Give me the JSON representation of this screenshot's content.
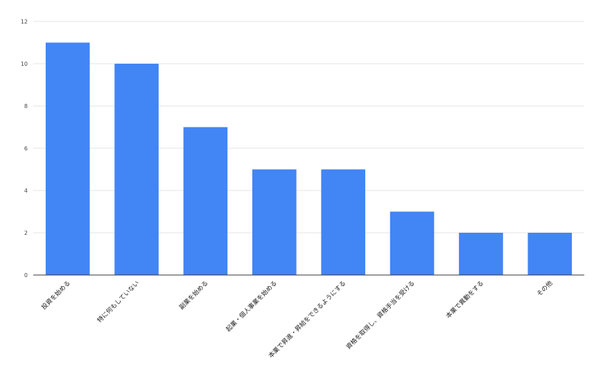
{
  "chart_data": {
    "type": "bar",
    "categories": [
      "投資を始める",
      "特に何もしていない",
      "副業を始める",
      "起業・個人事業を始める",
      "本業で昇進・昇給をできるようにする",
      "資格を取得し、資格手当を受ける",
      "本業で異動をする",
      "その他"
    ],
    "values": [
      11,
      10,
      7,
      5,
      5,
      3,
      2,
      2
    ],
    "title": "",
    "xlabel": "",
    "ylabel": "",
    "ylim": [
      0,
      12
    ],
    "yticks": [
      0,
      2,
      4,
      6,
      8,
      10,
      12
    ],
    "grid": true,
    "legend": "none",
    "bar_color": "#4285f4"
  }
}
